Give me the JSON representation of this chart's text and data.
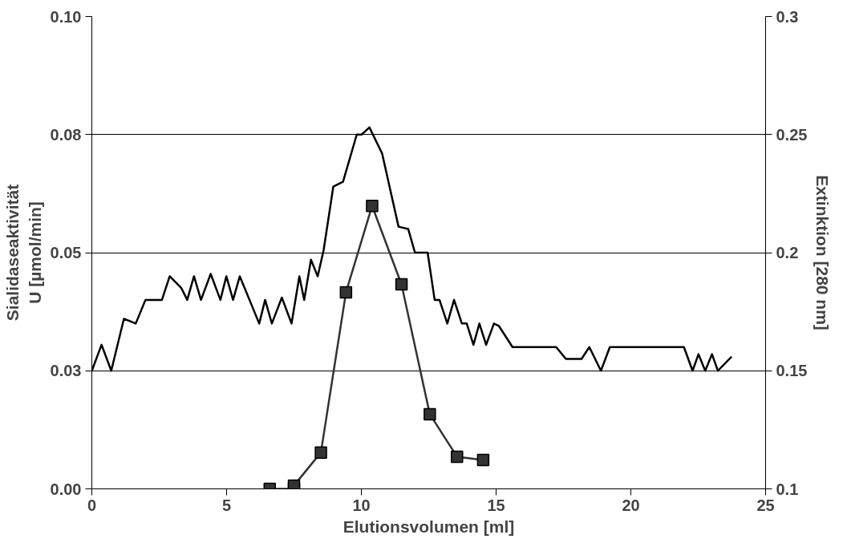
{
  "chart_data": {
    "type": "line",
    "xlabel": "Elutionsvolumen [ml]",
    "ylabel": "Sialidaseaktivität\nU [µmol/min]",
    "y2label": "Extinktion [280 nm]",
    "xlim": [
      0,
      25
    ],
    "xticks": [
      0,
      5,
      10,
      15,
      20,
      25
    ],
    "ylim": [
      0,
      0.1
    ],
    "yticks": [
      {
        "value": 0,
        "label": "0.00"
      },
      {
        "value": 0.025,
        "label": "0.03"
      },
      {
        "value": 0.05,
        "label": "0.05"
      },
      {
        "value": 0.075,
        "label": "0.08"
      },
      {
        "value": 0.1,
        "label": "0.10"
      }
    ],
    "y2lim": [
      0.1,
      0.3
    ],
    "y2ticks": [
      0.1,
      0.15,
      0.2,
      0.25,
      0.3
    ],
    "grid": "y",
    "series": [
      {
        "axis": "y2",
        "color": "#000000",
        "marker": "none",
        "line_style": "solid",
        "x": [
          0,
          0.36,
          0.72,
          1.19,
          1.63,
          1.99,
          2.6,
          2.89,
          3.32,
          3.54,
          3.79,
          4.05,
          4.41,
          4.77,
          4.99,
          5.24,
          5.49,
          5.85,
          6.21,
          6.43,
          6.68,
          7.05,
          7.41,
          7.7,
          7.88,
          8.13,
          8.38,
          8.6,
          8.96,
          9.32,
          9.83,
          10.01,
          10.3,
          10.77,
          11.38,
          11.74,
          11.99,
          12.46,
          12.72,
          12.9,
          13.19,
          13.44,
          13.73,
          13.91,
          14.16,
          14.38,
          14.63,
          14.92,
          15.1,
          15.61,
          17.23,
          17.59,
          18.17,
          18.46,
          18.89,
          19.22,
          21.13,
          21.97,
          22.29,
          22.51,
          22.76,
          23.01,
          23.23,
          23.74
        ],
        "values": [
          0.15,
          0.161,
          0.15,
          0.172,
          0.17,
          0.18,
          0.18,
          0.19,
          0.185,
          0.18,
          0.19,
          0.18,
          0.191,
          0.18,
          0.19,
          0.18,
          0.19,
          0.18,
          0.17,
          0.18,
          0.17,
          0.181,
          0.17,
          0.19,
          0.18,
          0.197,
          0.19,
          0.201,
          0.228,
          0.23,
          0.25,
          0.25,
          0.253,
          0.242,
          0.211,
          0.21,
          0.2,
          0.2,
          0.18,
          0.18,
          0.17,
          0.18,
          0.17,
          0.17,
          0.161,
          0.17,
          0.161,
          0.17,
          0.169,
          0.16,
          0.16,
          0.155,
          0.155,
          0.16,
          0.15,
          0.16,
          0.16,
          0.16,
          0.15,
          0.157,
          0.15,
          0.157,
          0.15,
          0.156
        ]
      },
      {
        "axis": "y",
        "color": "#333333",
        "marker": "square",
        "line_style": "solid",
        "x": [
          6.6,
          7.5,
          7.5,
          8.5,
          9.43,
          10.4,
          11.49,
          12.54,
          13.55,
          14.52
        ],
        "values": [
          0.0,
          0.0,
          0.0007,
          0.0077,
          0.0416,
          0.0599,
          0.0433,
          0.0158,
          0.0068,
          0.0061
        ]
      }
    ]
  }
}
